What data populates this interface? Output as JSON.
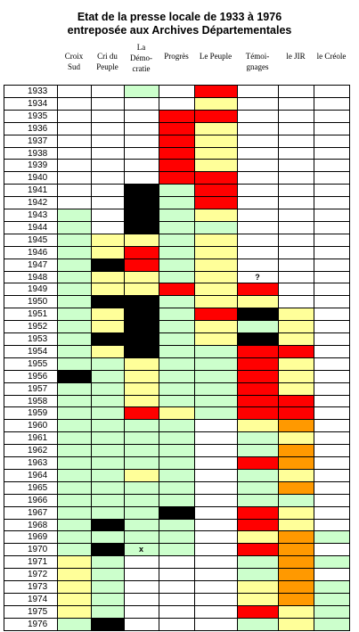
{
  "title_lines": [
    "Etat de la presse locale de 1933 à 1976",
    "entreposée aux Archives Départementales"
  ],
  "columns": [
    {
      "key": "croix_sud",
      "label_lines": [
        "Croix",
        "Sud"
      ]
    },
    {
      "key": "cri_du_peuple",
      "label_lines": [
        "Cri du",
        "Peuple"
      ]
    },
    {
      "key": "la_democratie",
      "label_lines": [
        "La",
        "Démo-",
        "cratie"
      ]
    },
    {
      "key": "progres",
      "label_lines": [
        "Progrès"
      ]
    },
    {
      "key": "le_peuple",
      "label_lines": [
        "Le Peuple"
      ]
    },
    {
      "key": "temoignages",
      "label_lines": [
        "Témoi-",
        "gnages"
      ]
    },
    {
      "key": "le_jir",
      "label_lines": [
        "le JIR"
      ]
    },
    {
      "key": "le_creole",
      "label_lines": [
        "le Créole"
      ]
    }
  ],
  "status_colors": {
    "W": "#ffffff",
    "G": "#ccffcc",
    "Y": "#ffff99",
    "R": "#ff0000",
    "K": "#000000",
    "O": "#ff9900"
  },
  "years": [
    "1933",
    "1934",
    "1935",
    "1936",
    "1937",
    "1938",
    "1939",
    "1940",
    "1941",
    "1942",
    "1943",
    "1944",
    "1945",
    "1946",
    "1947",
    "1948",
    "1949",
    "1950",
    "1951",
    "1952",
    "1953",
    "1954",
    "1955",
    "1956",
    "1957",
    "1958",
    "1959",
    "1960",
    "1961",
    "1962",
    "1963",
    "1964",
    "1965",
    "1966",
    "1967",
    "1968",
    "1969",
    "1970",
    "1971",
    "1972",
    "1973",
    "1974",
    "1975",
    "1976"
  ],
  "rows": [
    "WWGWRWWW",
    "WWWWYWWW",
    "WWWRRWWW",
    "WWWRYWWW",
    "WWWRYWWW",
    "WWWRYWWW",
    "WWWRYWWW",
    "WWWRRWWW",
    "WWKGRWWW",
    "WWKGRWWW",
    "GWKGYWWW",
    "GWKGGWWW",
    "GYYGYWWW",
    "GYRGYWWW",
    "GKRGYWWW",
    "GYYGYWWW",
    "GYYRYRWW",
    "GKKGYYWW",
    "GYKGRKYW",
    "GYKGYGYW",
    "GKKGYKYW",
    "GYKGGRRW",
    "GGYGGRYW",
    "KGYGGRYW",
    "GGYGGRYW",
    "GGYGGRRW",
    "GGRYGRRW",
    "GGGGWYOW",
    "GGGGWGYW",
    "GGGGWGOW",
    "GGGGWROW",
    "GGYGWGYW",
    "GGGGWGOW",
    "GGGGWGGW",
    "GGGKWRYW",
    "GKGGWRYW",
    "GGGGWYOG",
    "GKGGWROW",
    "YGWWWGOG",
    "YGWWWGOW",
    "YGWWWYOG",
    "YGWWWYOG",
    "YGWWWRYG",
    "GKWWWGYG"
  ],
  "marks": [
    {
      "year": "1948",
      "column": "temoignages",
      "text": "?"
    },
    {
      "year": "1970",
      "column": "la_democratie",
      "text": "x"
    }
  ]
}
